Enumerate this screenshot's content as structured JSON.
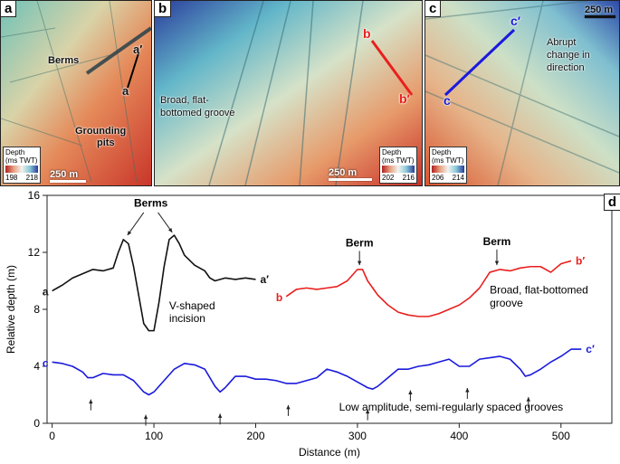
{
  "panels": {
    "a": {
      "label": "a",
      "berms": "Berms",
      "section_start": "a",
      "section_end": "a′",
      "grounding": "Grounding",
      "pits": "pits",
      "scale": "250 m",
      "legend": {
        "title1": "Depth",
        "title2": "(ms TWT)",
        "min": "198",
        "max": "218"
      }
    },
    "b": {
      "label": "b",
      "section_start": "b",
      "section_end": "b′",
      "groove1": "Broad, flat-",
      "groove2": "bottomed groove",
      "scale": "250 m",
      "legend": {
        "title1": "Depth",
        "title2": "(ms TWT)",
        "min": "202",
        "max": "216"
      }
    },
    "c": {
      "label": "c",
      "section_start": "c",
      "section_end": "c′",
      "change1": "Abrupt",
      "change2": "change in",
      "change3": "direction",
      "scale": "250 m",
      "legend": {
        "title1": "Depth",
        "title2": "(ms TWT)",
        "min": "206",
        "max": "214"
      }
    },
    "d": {
      "label": "d"
    }
  },
  "colors": {
    "a_profile": "#111111",
    "b_profile": "#e8201e",
    "c_profile": "#1a1adc"
  },
  "chart_data": {
    "type": "line",
    "xlabel": "Distance (m)",
    "ylabel": "Relative depth (m)",
    "xlim": [
      -5,
      550
    ],
    "ylim": [
      0,
      16
    ],
    "xticks": [
      0,
      100,
      200,
      300,
      400,
      500
    ],
    "yticks": [
      0,
      4,
      8,
      12,
      16
    ],
    "series": [
      {
        "name": "a",
        "start_label": "a",
        "end_label": "a′",
        "color": "#111111",
        "x": [
          0,
          5,
          10,
          20,
          30,
          40,
          50,
          60,
          65,
          70,
          75,
          80,
          85,
          90,
          95,
          100,
          105,
          110,
          115,
          120,
          125,
          130,
          140,
          150,
          155,
          160,
          170,
          180,
          190,
          200
        ],
        "y": [
          9.3,
          9.5,
          9.7,
          10.2,
          10.5,
          10.8,
          10.7,
          10.9,
          12.0,
          12.9,
          12.6,
          11.0,
          9.0,
          7.0,
          6.5,
          6.5,
          8.5,
          11.0,
          12.9,
          13.2,
          12.6,
          11.8,
          11.1,
          10.7,
          10.2,
          10.0,
          10.2,
          10.1,
          10.2,
          10.1
        ]
      },
      {
        "name": "b",
        "start_label": "b",
        "end_label": "b′",
        "color": "#e8201e",
        "x": [
          230,
          240,
          250,
          260,
          270,
          280,
          290,
          300,
          305,
          310,
          320,
          330,
          340,
          350,
          360,
          370,
          380,
          390,
          400,
          410,
          420,
          430,
          440,
          450,
          460,
          470,
          480,
          490,
          500,
          510
        ],
        "y": [
          8.9,
          9.4,
          9.5,
          9.4,
          9.5,
          9.6,
          10.0,
          10.8,
          10.8,
          10.0,
          9.0,
          8.3,
          7.8,
          7.6,
          7.5,
          7.5,
          7.7,
          8.0,
          8.3,
          8.8,
          9.5,
          10.6,
          10.8,
          10.7,
          10.9,
          11.0,
          11.0,
          10.6,
          11.2,
          11.4
        ]
      },
      {
        "name": "c",
        "start_label": "c",
        "end_label": "c′",
        "color": "#1a1adc",
        "x": [
          0,
          10,
          20,
          30,
          35,
          40,
          50,
          60,
          70,
          80,
          90,
          95,
          100,
          110,
          120,
          130,
          140,
          150,
          160,
          165,
          170,
          180,
          190,
          200,
          210,
          220,
          230,
          240,
          250,
          260,
          270,
          280,
          290,
          300,
          310,
          315,
          320,
          330,
          340,
          350,
          360,
          370,
          380,
          390,
          400,
          410,
          420,
          430,
          440,
          450,
          460,
          465,
          470,
          480,
          490,
          500,
          510,
          520
        ],
        "y": [
          4.3,
          4.2,
          4.0,
          3.6,
          3.2,
          3.2,
          3.5,
          3.4,
          3.4,
          3.0,
          2.2,
          2.0,
          2.2,
          3.0,
          3.8,
          4.2,
          4.1,
          3.8,
          2.6,
          2.2,
          2.5,
          3.3,
          3.3,
          3.1,
          3.1,
          3.0,
          2.8,
          2.8,
          3.0,
          3.2,
          3.8,
          3.6,
          3.3,
          2.9,
          2.5,
          2.4,
          2.6,
          3.2,
          3.8,
          3.8,
          4.0,
          4.1,
          4.3,
          4.5,
          4.0,
          4.0,
          4.5,
          4.6,
          4.7,
          4.5,
          3.8,
          3.3,
          3.4,
          3.8,
          4.3,
          4.7,
          5.2,
          5.2
        ]
      }
    ],
    "groove_arrows_x": [
      38,
      92,
      165,
      232,
      310,
      352,
      408,
      468
    ],
    "annotations": {
      "berms": "Berms",
      "berm1": "Berm",
      "berm2": "Berm",
      "v_shaped1": "V-shaped",
      "v_shaped2": "incision",
      "broad1": "Broad, flat-bottomed",
      "broad2": "groove",
      "low_amp": "Low amplitude, semi-regularly spaced grooves"
    }
  }
}
